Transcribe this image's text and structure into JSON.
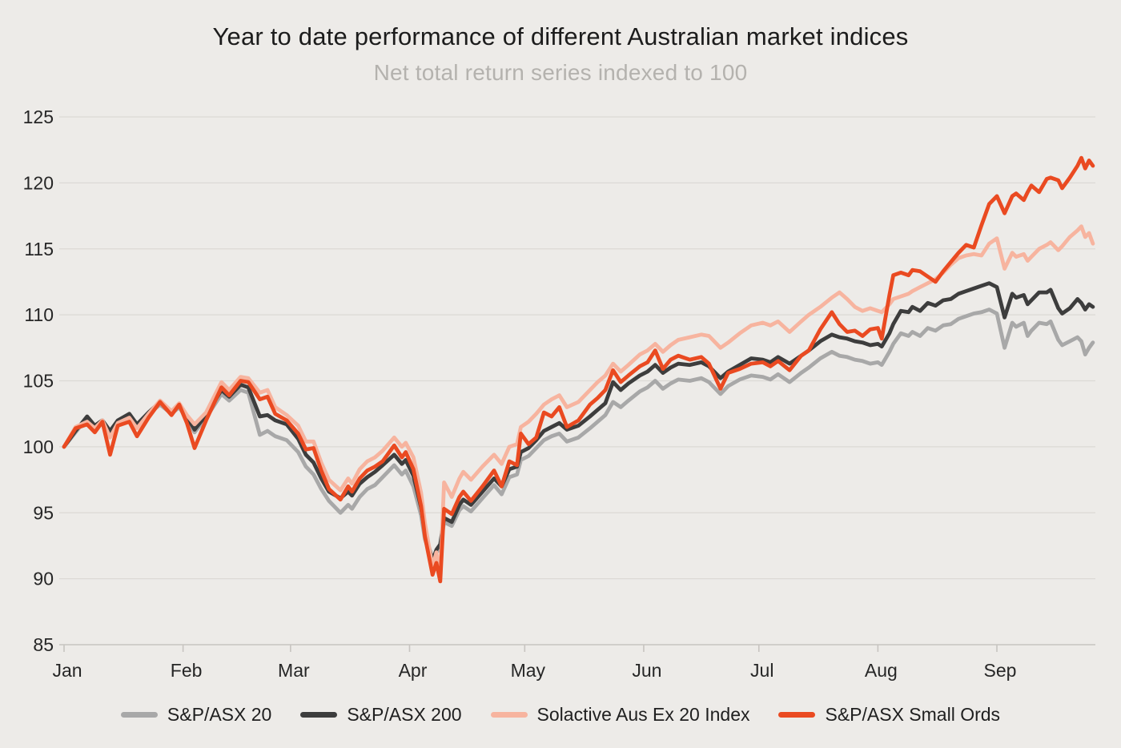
{
  "page": {
    "background": "#edebe8",
    "grid_color": "#dcd9d5",
    "axis_line_color": "#c7c4c0",
    "tick_label_color": "#262626",
    "title_color": "#1c1c1c",
    "subtitle_color": "#b4b2ae"
  },
  "chart_data": {
    "type": "line",
    "title": "Year to date performance of different Australian market indices",
    "subtitle": "Net total return series indexed to 100",
    "xlabel": "",
    "ylabel": "",
    "grid": true,
    "legend_position": "bottom",
    "y_axis": {
      "range": [
        85,
        125
      ],
      "ticks": [
        85,
        90,
        95,
        100,
        105,
        110,
        115,
        120,
        125
      ]
    },
    "x_axis": {
      "unit": "day of year",
      "tick_labels": [
        "Jan",
        "Feb",
        "Mar",
        "Apr",
        "May",
        "Jun",
        "Jul",
        "Aug",
        "Sep"
      ],
      "tick_days": [
        0,
        31,
        59,
        90,
        120,
        151,
        181,
        212,
        243
      ],
      "range_days": [
        0,
        268
      ]
    },
    "x_days": [
      0,
      3,
      6,
      8,
      10,
      12,
      14,
      17,
      19,
      22,
      25,
      28,
      30,
      32,
      34,
      37,
      41,
      43,
      46,
      48,
      51,
      53,
      55,
      58,
      61,
      63,
      65,
      67,
      69,
      72,
      74,
      75,
      77,
      79,
      81,
      83,
      86,
      88,
      89,
      91,
      93,
      94,
      96,
      97,
      98,
      99,
      101,
      103,
      104,
      106,
      109,
      112,
      114,
      116,
      118,
      119,
      121,
      123,
      125,
      127,
      129,
      131,
      134,
      137,
      139,
      141,
      143,
      145,
      147,
      150,
      152,
      154,
      156,
      158,
      160,
      163,
      166,
      168,
      171,
      173,
      176,
      179,
      182,
      184,
      186,
      189,
      192,
      194,
      197,
      200,
      202,
      204,
      206,
      208,
      210,
      212,
      213,
      215,
      216,
      218,
      220,
      221,
      223,
      225,
      227,
      229,
      231,
      233,
      235,
      237,
      239,
      241,
      243,
      245,
      247,
      248,
      250,
      251,
      252,
      254,
      256,
      257,
      259,
      260,
      262,
      264,
      265,
      266,
      267,
      268
    ],
    "series": [
      {
        "name": "S&P/ASX 20",
        "color": "#a8a8a8",
        "values": [
          100.0,
          101.1,
          102.2,
          101.5,
          101.9,
          101.1,
          101.9,
          102.4,
          101.6,
          102.5,
          103.2,
          102.5,
          103.0,
          102.1,
          101.1,
          102.2,
          104.0,
          103.5,
          104.3,
          104.1,
          100.9,
          101.2,
          100.8,
          100.5,
          99.6,
          98.5,
          97.9,
          96.8,
          95.9,
          95.0,
          95.6,
          95.3,
          96.2,
          96.8,
          97.1,
          97.7,
          98.6,
          97.9,
          98.2,
          97.0,
          94.8,
          93.0,
          91.2,
          92.0,
          92.3,
          94.3,
          94.0,
          95.2,
          95.5,
          95.1,
          96.1,
          97.1,
          96.4,
          97.7,
          97.9,
          99.0,
          99.3,
          99.9,
          100.5,
          100.8,
          101.0,
          100.4,
          100.7,
          101.4,
          101.9,
          102.4,
          103.4,
          103.0,
          103.5,
          104.2,
          104.5,
          105.0,
          104.4,
          104.8,
          105.1,
          105.0,
          105.2,
          104.9,
          104.0,
          104.6,
          105.1,
          105.4,
          105.3,
          105.1,
          105.5,
          104.9,
          105.6,
          106.0,
          106.7,
          107.2,
          106.9,
          106.8,
          106.6,
          106.5,
          106.3,
          106.4,
          106.2,
          107.2,
          107.8,
          108.6,
          108.4,
          108.7,
          108.4,
          109.0,
          108.8,
          109.2,
          109.3,
          109.7,
          109.9,
          110.1,
          110.2,
          110.4,
          110.1,
          107.5,
          109.4,
          109.1,
          109.4,
          108.4,
          108.8,
          109.4,
          109.3,
          109.5,
          108.1,
          107.7,
          108.0,
          108.3,
          108.0,
          107.0,
          107.5,
          107.9
        ]
      },
      {
        "name": "S&P/ASX 200",
        "color": "#3d3d3d",
        "values": [
          100.0,
          101.2,
          102.3,
          101.6,
          102.0,
          101.2,
          102.0,
          102.5,
          101.7,
          102.6,
          103.4,
          102.7,
          103.2,
          102.3,
          101.3,
          102.4,
          104.3,
          103.8,
          104.7,
          104.5,
          102.3,
          102.4,
          102.0,
          101.7,
          100.6,
          99.4,
          98.8,
          97.6,
          96.6,
          96.1,
          96.6,
          96.3,
          97.2,
          97.7,
          98.1,
          98.6,
          99.4,
          98.7,
          99.0,
          97.8,
          95.4,
          93.5,
          91.4,
          92.2,
          92.6,
          94.6,
          94.3,
          95.6,
          96.0,
          95.6,
          96.6,
          97.6,
          97.0,
          98.3,
          98.5,
          99.6,
          99.9,
          100.5,
          101.2,
          101.5,
          101.8,
          101.3,
          101.6,
          102.3,
          102.8,
          103.3,
          104.9,
          104.3,
          104.8,
          105.4,
          105.7,
          106.2,
          105.6,
          106.0,
          106.3,
          106.2,
          106.4,
          106.1,
          105.2,
          105.7,
          106.2,
          106.7,
          106.6,
          106.4,
          106.8,
          106.3,
          106.9,
          107.3,
          108.0,
          108.5,
          108.3,
          108.2,
          108.0,
          107.9,
          107.7,
          107.8,
          107.6,
          108.6,
          109.3,
          110.3,
          110.2,
          110.6,
          110.3,
          110.9,
          110.7,
          111.1,
          111.2,
          111.6,
          111.8,
          112.0,
          112.2,
          112.4,
          112.1,
          109.8,
          111.6,
          111.3,
          111.5,
          110.8,
          111.1,
          111.7,
          111.7,
          111.9,
          110.5,
          110.1,
          110.5,
          111.2,
          110.9,
          110.4,
          110.8,
          110.6
        ]
      },
      {
        "name": "Solactive Aus Ex 20 Index",
        "color": "#f7b49f",
        "values": [
          100.0,
          101.5,
          101.9,
          101.4,
          102.0,
          100.7,
          101.8,
          102.2,
          101.4,
          102.5,
          103.5,
          102.7,
          103.3,
          102.4,
          101.7,
          102.6,
          104.9,
          104.3,
          105.3,
          105.2,
          104.1,
          104.3,
          103.0,
          102.4,
          101.6,
          100.4,
          100.4,
          98.8,
          97.5,
          96.7,
          97.6,
          97.2,
          98.3,
          98.9,
          99.2,
          99.7,
          100.7,
          100.0,
          100.3,
          99.2,
          96.5,
          94.2,
          90.9,
          92.0,
          90.2,
          97.3,
          96.2,
          97.6,
          98.1,
          97.5,
          98.5,
          99.4,
          98.7,
          100.0,
          100.2,
          101.5,
          101.9,
          102.5,
          103.2,
          103.6,
          103.9,
          103.0,
          103.4,
          104.3,
          104.9,
          105.4,
          106.3,
          105.7,
          106.2,
          107.0,
          107.3,
          107.8,
          107.2,
          107.7,
          108.1,
          108.3,
          108.5,
          108.4,
          107.5,
          107.9,
          108.6,
          109.2,
          109.4,
          109.2,
          109.5,
          108.7,
          109.5,
          110.0,
          110.6,
          111.3,
          111.7,
          111.2,
          110.6,
          110.3,
          110.5,
          110.3,
          110.2,
          110.8,
          111.2,
          111.4,
          111.6,
          111.8,
          112.1,
          112.4,
          112.7,
          113.2,
          113.8,
          114.3,
          114.5,
          114.6,
          114.5,
          115.4,
          115.8,
          113.5,
          114.7,
          114.4,
          114.6,
          114.1,
          114.4,
          115.0,
          115.3,
          115.5,
          114.9,
          115.2,
          115.9,
          116.4,
          116.7,
          115.9,
          116.2,
          115.4
        ]
      },
      {
        "name": "S&P/ASX Small Ords",
        "color": "#ea4a21",
        "values": [
          100.0,
          101.4,
          101.7,
          101.1,
          101.9,
          99.4,
          101.6,
          101.9,
          100.8,
          102.2,
          103.4,
          102.4,
          103.2,
          101.8,
          99.9,
          102.0,
          104.5,
          103.9,
          105.0,
          104.9,
          103.6,
          103.8,
          102.5,
          102.0,
          101.0,
          99.8,
          99.9,
          98.2,
          96.8,
          96.0,
          97.0,
          96.6,
          97.6,
          98.2,
          98.5,
          98.9,
          100.1,
          99.2,
          99.6,
          98.3,
          95.5,
          93.2,
          90.3,
          91.2,
          89.8,
          95.3,
          94.9,
          96.2,
          96.6,
          95.9,
          97.0,
          98.2,
          97.0,
          98.9,
          98.6,
          101.0,
          100.2,
          100.7,
          102.6,
          102.3,
          103.0,
          101.5,
          102.0,
          103.2,
          103.7,
          104.3,
          105.8,
          104.9,
          105.4,
          106.1,
          106.4,
          107.3,
          105.9,
          106.6,
          106.9,
          106.6,
          106.8,
          106.3,
          104.4,
          105.6,
          105.9,
          106.3,
          106.4,
          106.1,
          106.5,
          105.8,
          106.9,
          107.3,
          108.9,
          110.2,
          109.3,
          108.7,
          108.8,
          108.4,
          108.9,
          109.0,
          108.2,
          111.5,
          113.0,
          113.2,
          113.0,
          113.4,
          113.3,
          112.9,
          112.5,
          113.3,
          114.0,
          114.7,
          115.3,
          115.1,
          116.8,
          118.4,
          119.0,
          117.7,
          119.0,
          119.2,
          118.7,
          119.3,
          119.8,
          119.3,
          120.3,
          120.4,
          120.2,
          119.6,
          120.4,
          121.3,
          121.9,
          121.1,
          121.7,
          121.3
        ]
      }
    ]
  },
  "legend": {
    "items": [
      "S&P/ASX 20",
      "S&P/ASX 200",
      "Solactive Aus Ex 20 Index",
      "S&P/ASX Small Ords"
    ]
  }
}
